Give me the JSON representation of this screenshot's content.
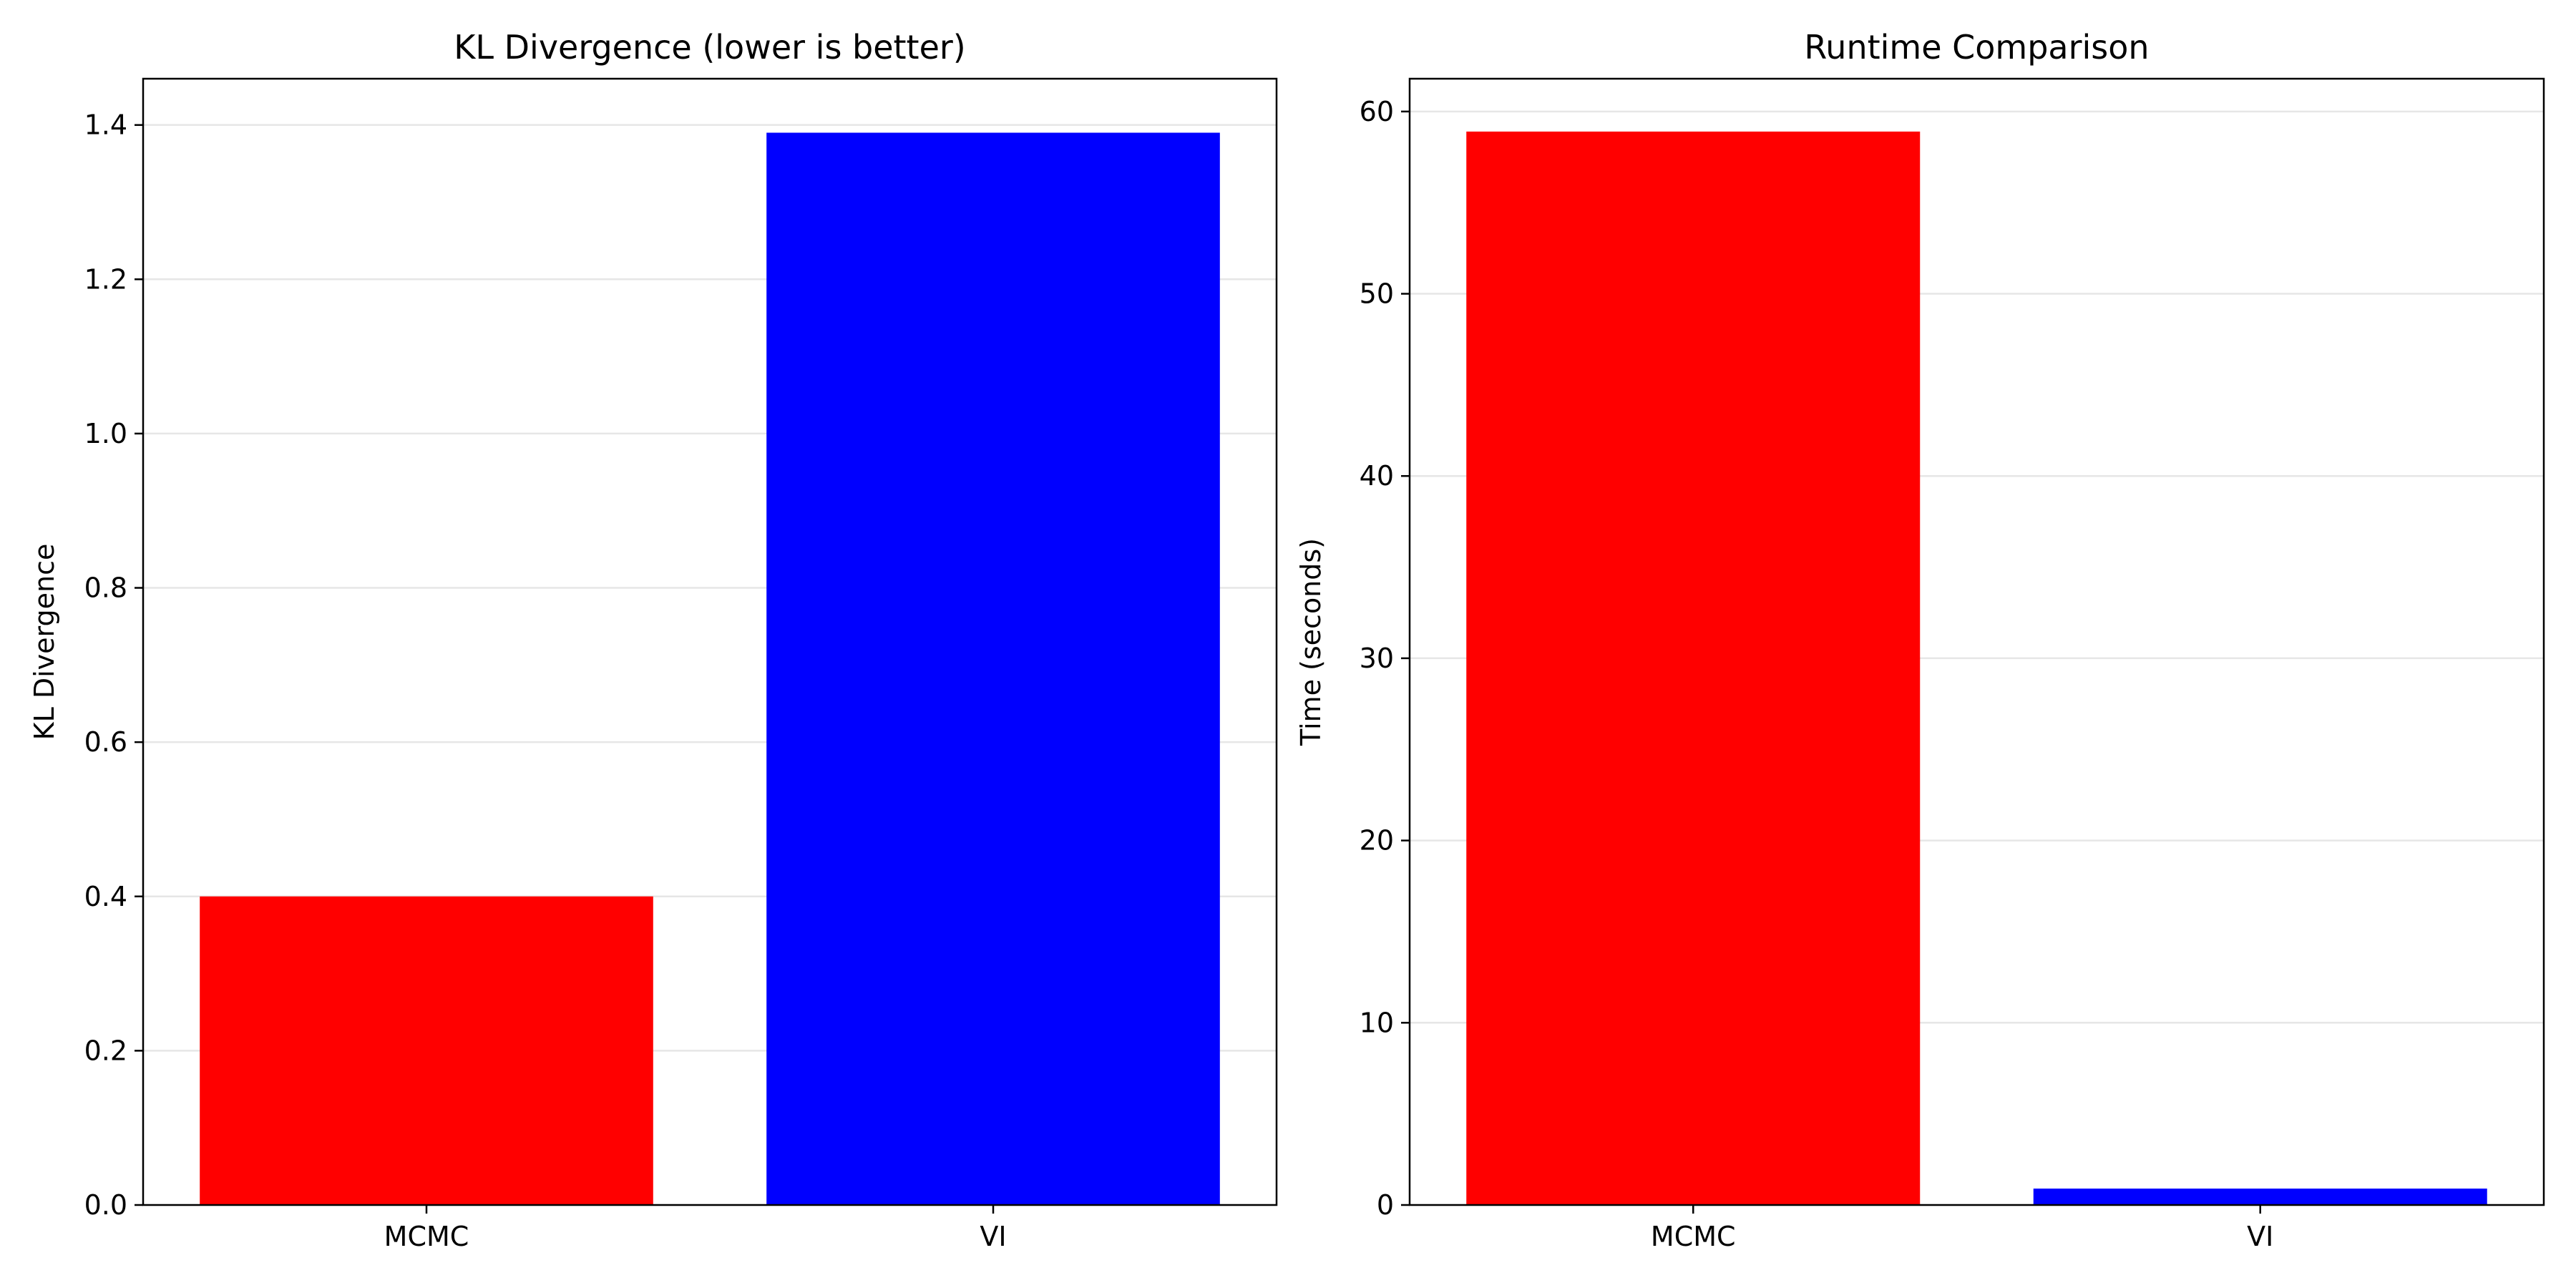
{
  "chart_data": [
    {
      "type": "bar",
      "title": "KL Divergence (lower is better)",
      "xlabel": "",
      "ylabel": "KL Divergence",
      "categories": [
        "MCMC",
        "VI"
      ],
      "values": [
        0.4,
        1.39
      ],
      "colors": [
        "#ff0000",
        "#0000ff"
      ],
      "ylim": [
        0,
        1.46
      ],
      "yticks": [
        0.0,
        0.2,
        0.4,
        0.6,
        0.8,
        1.0,
        1.2,
        1.4
      ],
      "ytick_labels": [
        "0.0",
        "0.2",
        "0.4",
        "0.6",
        "0.8",
        "1.0",
        "1.2",
        "1.4"
      ],
      "grid": "horizontal",
      "legend": "none"
    },
    {
      "type": "bar",
      "title": "Runtime Comparison",
      "xlabel": "",
      "ylabel": "Time (seconds)",
      "categories": [
        "MCMC",
        "VI"
      ],
      "values": [
        58.9,
        0.9
      ],
      "colors": [
        "#ff0000",
        "#0000ff"
      ],
      "ylim": [
        0,
        61.8
      ],
      "yticks": [
        0,
        10,
        20,
        30,
        40,
        50,
        60
      ],
      "ytick_labels": [
        "0",
        "10",
        "20",
        "30",
        "40",
        "50",
        "60"
      ],
      "grid": "horizontal",
      "legend": "none"
    }
  ]
}
